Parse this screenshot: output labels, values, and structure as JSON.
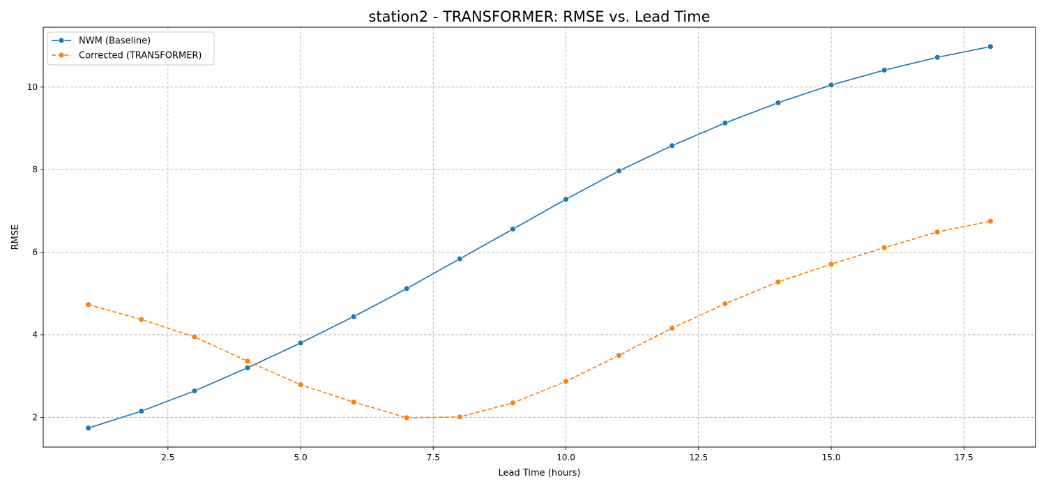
{
  "chart_data": {
    "type": "line",
    "title": "station2 - TRANSFORMER: RMSE vs. Lead Time",
    "xlabel": "Lead Time (hours)",
    "ylabel": "RMSE",
    "xlim": [
      0.15,
      18.85
    ],
    "ylim": [
      1.28,
      11.45
    ],
    "xticks": [
      2.5,
      5.0,
      7.5,
      10.0,
      12.5,
      15.0,
      17.5
    ],
    "xtick_labels": [
      "2.5",
      "5.0",
      "7.5",
      "10.0",
      "12.5",
      "15.0",
      "17.5"
    ],
    "yticks": [
      2,
      4,
      6,
      8,
      10
    ],
    "ytick_labels": [
      "2",
      "4",
      "6",
      "8",
      "10"
    ],
    "grid": true,
    "legend_position": "top-left",
    "x": [
      1,
      2,
      3,
      4,
      5,
      6,
      7,
      8,
      9,
      10,
      11,
      12,
      13,
      14,
      15,
      16,
      17,
      18
    ],
    "series": [
      {
        "name": "NWM (Baseline)",
        "color": "#1f77b4",
        "line_style": "solid",
        "marker": "circle",
        "values": [
          1.74,
          2.15,
          2.64,
          3.2,
          3.8,
          4.44,
          5.12,
          5.84,
          6.56,
          7.28,
          7.97,
          8.58,
          9.13,
          9.62,
          10.05,
          10.41,
          10.72,
          10.98
        ]
      },
      {
        "name": "Corrected (TRANSFORMER)",
        "color": "#ff7f0e",
        "line_style": "dashed",
        "marker": "circle",
        "values": [
          4.73,
          4.37,
          3.95,
          3.36,
          2.79,
          2.37,
          1.99,
          2.01,
          2.35,
          2.87,
          3.5,
          4.16,
          4.75,
          5.28,
          5.71,
          6.11,
          6.49,
          6.75
        ]
      }
    ]
  }
}
